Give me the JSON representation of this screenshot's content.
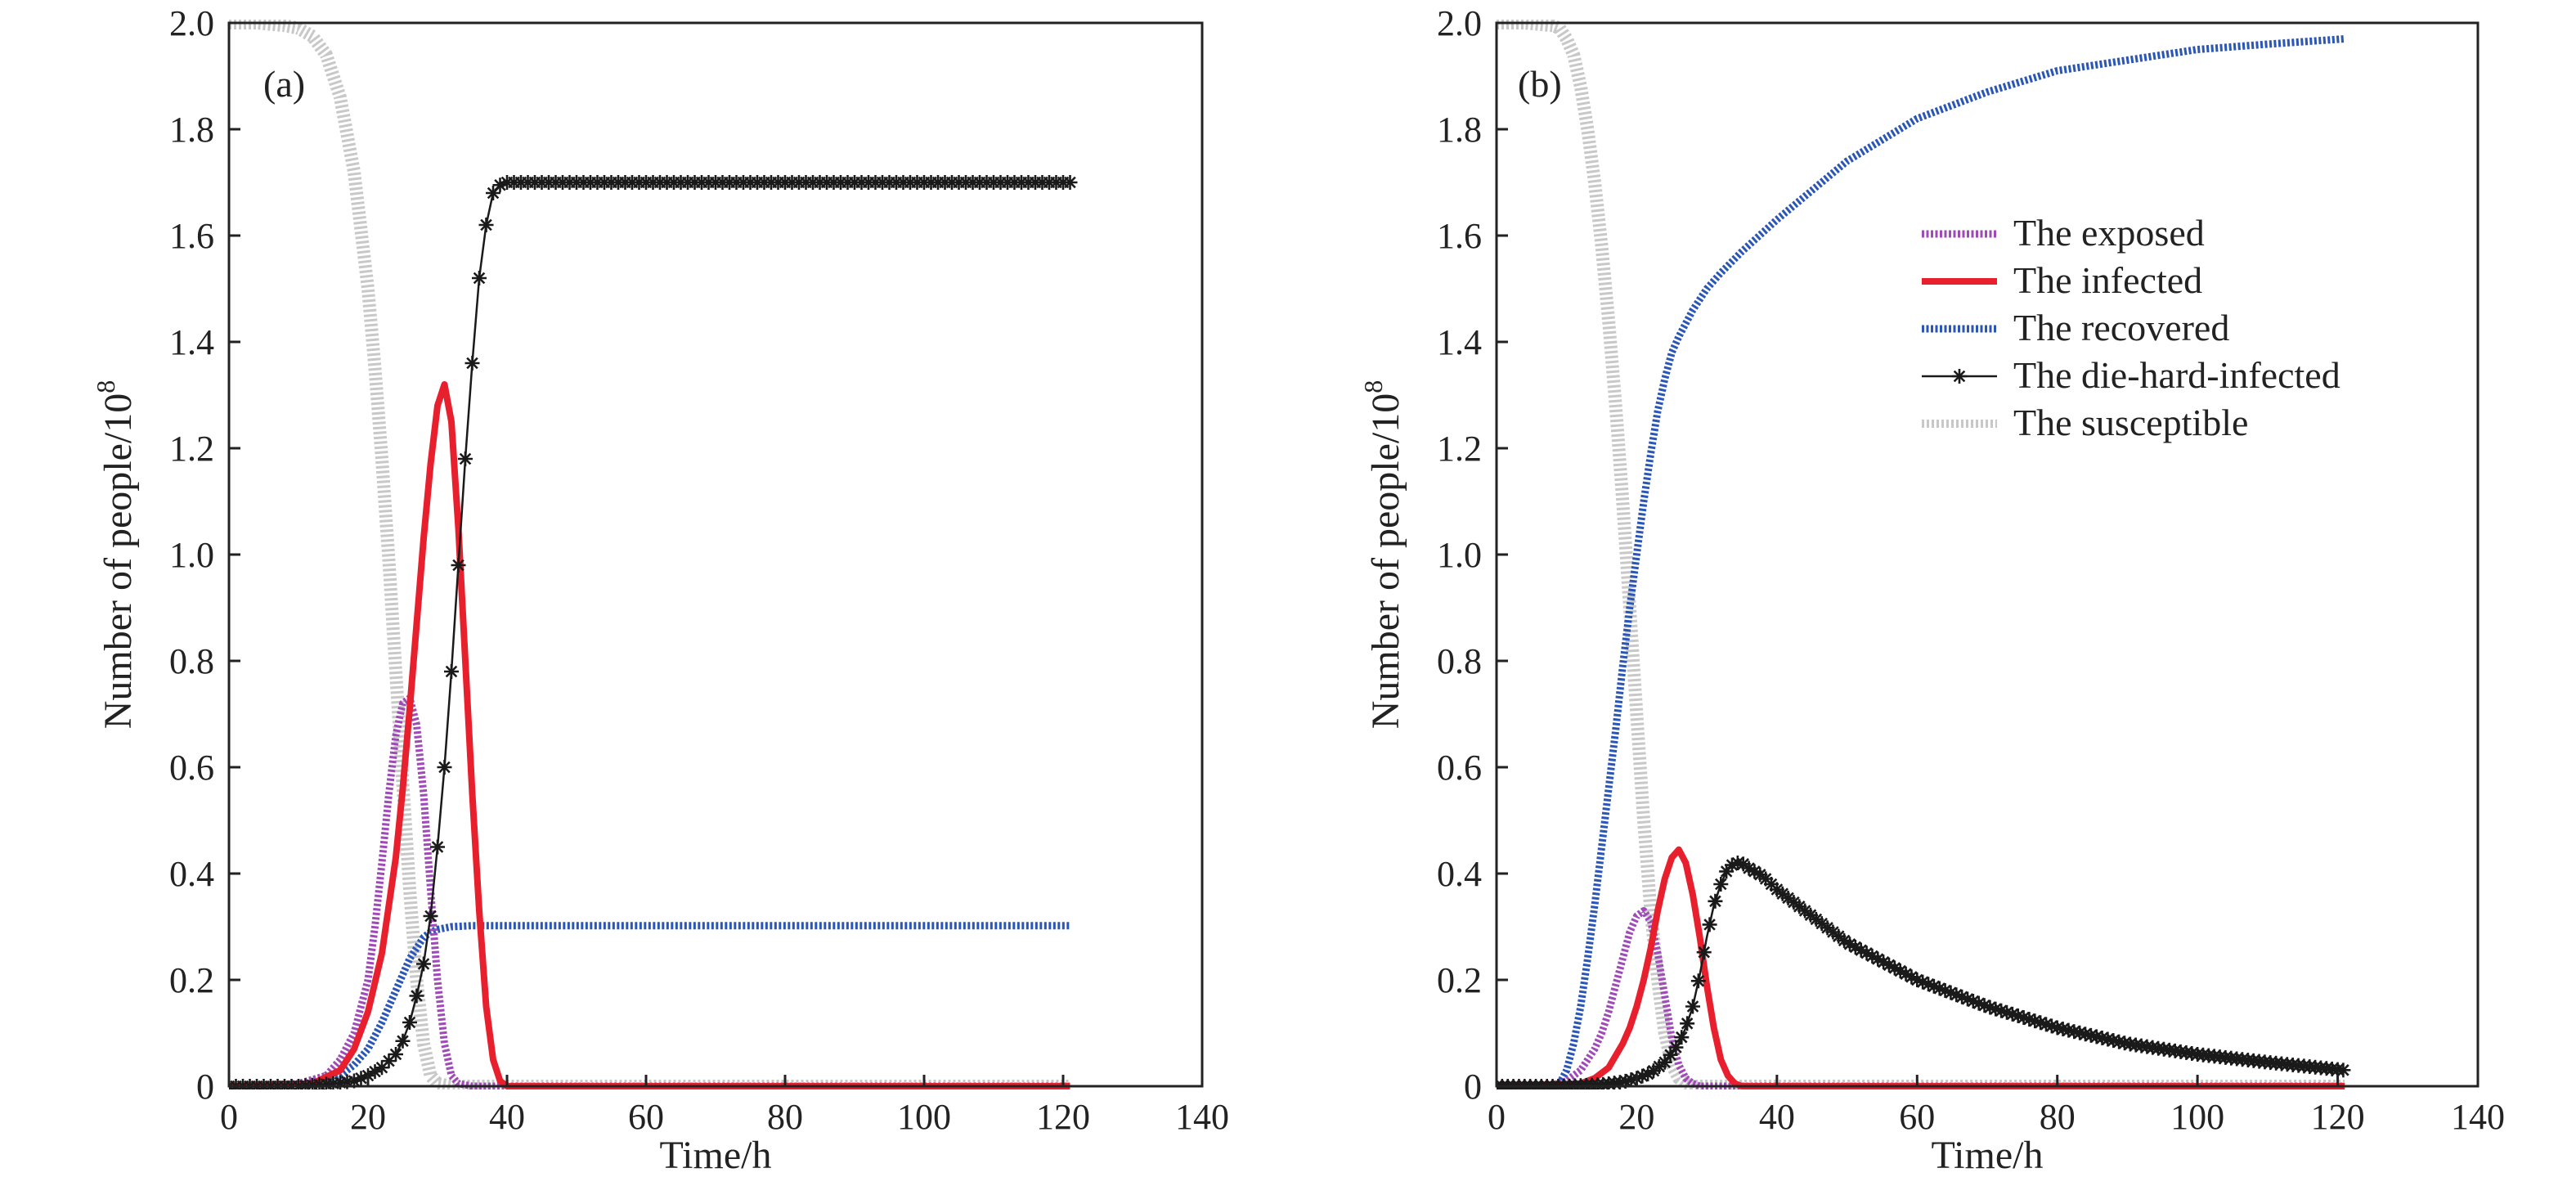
{
  "figure": {
    "legend_labels": [
      "The exposed",
      "The infected",
      "The recovered",
      "The die-hard-infected",
      "The susceptible"
    ]
  },
  "chart_data": [
    {
      "type": "line",
      "panel_label": "(a)",
      "xlabel": "Time/h",
      "ylabel": "Number of people/10",
      "ylabel_superscript": "8",
      "xlim": [
        0,
        140
      ],
      "ylim": [
        0,
        2.0
      ],
      "xticks": [
        "0",
        "20",
        "40",
        "60",
        "80",
        "100",
        "120",
        "140"
      ],
      "yticks": [
        "0",
        "0.2",
        "0.4",
        "0.6",
        "0.8",
        "1.0",
        "1.2",
        "1.4",
        "1.6",
        "1.8",
        "2.0"
      ],
      "legend": false,
      "series": [
        {
          "key": "susceptible",
          "color": "#c8c8c8",
          "style": "thick-light",
          "x": [
            0,
            4,
            8,
            10,
            12,
            14,
            16,
            18,
            20,
            21,
            22,
            23,
            24,
            25,
            26,
            27,
            28,
            29,
            30,
            32,
            35,
            121
          ],
          "y": [
            2.0,
            2.0,
            1.995,
            1.99,
            1.975,
            1.94,
            1.86,
            1.72,
            1.5,
            1.35,
            1.18,
            0.99,
            0.78,
            0.57,
            0.37,
            0.2,
            0.08,
            0.02,
            0.005,
            0,
            0,
            0
          ]
        },
        {
          "key": "exposed",
          "color": "#a04ab8",
          "style": "dotted",
          "x": [
            0,
            10,
            14,
            16,
            18,
            20,
            21,
            22,
            23,
            24,
            25,
            26,
            27,
            28,
            29,
            30,
            31,
            32,
            33,
            35,
            40,
            121
          ],
          "y": [
            0,
            0.005,
            0.02,
            0.05,
            0.1,
            0.2,
            0.3,
            0.42,
            0.55,
            0.66,
            0.72,
            0.73,
            0.68,
            0.55,
            0.37,
            0.2,
            0.08,
            0.02,
            0.005,
            0,
            0,
            0
          ]
        },
        {
          "key": "infected",
          "color": "#e8202e",
          "style": "solid-thick",
          "x": [
            0,
            12,
            16,
            18,
            20,
            22,
            24,
            25,
            26,
            27,
            28,
            29,
            30,
            31,
            32,
            33,
            34,
            35,
            36,
            37,
            38,
            39,
            40,
            121
          ],
          "y": [
            0,
            0.005,
            0.03,
            0.07,
            0.14,
            0.25,
            0.43,
            0.56,
            0.71,
            0.87,
            1.03,
            1.17,
            1.28,
            1.32,
            1.25,
            1.05,
            0.8,
            0.55,
            0.33,
            0.15,
            0.05,
            0.01,
            0,
            0
          ]
        },
        {
          "key": "recovered",
          "color": "#2a56b6",
          "style": "dotted",
          "x": [
            0,
            10,
            14,
            16,
            18,
            20,
            22,
            24,
            25,
            26,
            27,
            28,
            29,
            30,
            32,
            35,
            38,
            40,
            60,
            80,
            100,
            121
          ],
          "y": [
            0,
            0.002,
            0.008,
            0.02,
            0.04,
            0.07,
            0.12,
            0.18,
            0.21,
            0.24,
            0.26,
            0.28,
            0.29,
            0.295,
            0.3,
            0.302,
            0.302,
            0.302,
            0.302,
            0.302,
            0.302,
            0.302
          ]
        },
        {
          "key": "die-hard-infected",
          "color": "#1a1a1a",
          "style": "solid-stars",
          "x": [
            0,
            10,
            15,
            18,
            20,
            22,
            24,
            25,
            26,
            27,
            28,
            29,
            30,
            31,
            32,
            33,
            34,
            35,
            36,
            37,
            38,
            39,
            40,
            50,
            60,
            70,
            80,
            90,
            100,
            110,
            121
          ],
          "y": [
            0,
            0,
            0.005,
            0.01,
            0.02,
            0.035,
            0.06,
            0.085,
            0.12,
            0.17,
            0.23,
            0.32,
            0.45,
            0.6,
            0.78,
            0.98,
            1.18,
            1.36,
            1.52,
            1.62,
            1.68,
            1.695,
            1.7,
            1.7,
            1.7,
            1.7,
            1.7,
            1.7,
            1.7,
            1.7,
            1.7
          ]
        }
      ]
    },
    {
      "type": "line",
      "panel_label": "(b)",
      "xlabel": "Time/h",
      "ylabel": "Number of people/10",
      "ylabel_superscript": "8",
      "xlim": [
        0,
        140
      ],
      "ylim": [
        0,
        2.0
      ],
      "xticks": [
        "0",
        "20",
        "40",
        "60",
        "80",
        "100",
        "120",
        "140"
      ],
      "yticks": [
        "0",
        "0.2",
        "0.4",
        "0.6",
        "0.8",
        "1.0",
        "1.2",
        "1.4",
        "1.6",
        "1.8",
        "2.0"
      ],
      "legend": true,
      "legend_position": "top-right",
      "series": [
        {
          "key": "susceptible",
          "color": "#c8c8c8",
          "style": "thick-light",
          "x": [
            0,
            4,
            8,
            9,
            10,
            11,
            12,
            13,
            14,
            15,
            16,
            17,
            18,
            19,
            20,
            21,
            22,
            23,
            24,
            25,
            26,
            27,
            28,
            30,
            121
          ],
          "y": [
            2.0,
            2.0,
            1.995,
            1.99,
            1.97,
            1.94,
            1.88,
            1.8,
            1.7,
            1.58,
            1.44,
            1.28,
            1.1,
            0.9,
            0.7,
            0.5,
            0.33,
            0.2,
            0.1,
            0.04,
            0.015,
            0.005,
            0,
            0,
            0
          ]
        },
        {
          "key": "exposed",
          "color": "#a04ab8",
          "style": "dotted",
          "x": [
            0,
            8,
            10,
            12,
            14,
            15,
            16,
            17,
            18,
            19,
            20,
            21,
            22,
            23,
            24,
            25,
            26,
            27,
            28,
            29,
            30,
            121
          ],
          "y": [
            0,
            0.002,
            0.01,
            0.03,
            0.07,
            0.1,
            0.14,
            0.19,
            0.24,
            0.29,
            0.32,
            0.33,
            0.31,
            0.25,
            0.17,
            0.09,
            0.04,
            0.015,
            0.005,
            0,
            0,
            0
          ]
        },
        {
          "key": "infected",
          "color": "#e8202e",
          "style": "solid-thick",
          "x": [
            0,
            12,
            14,
            16,
            18,
            19,
            20,
            21,
            22,
            23,
            24,
            25,
            26,
            27,
            28,
            29,
            30,
            31,
            32,
            33,
            34,
            35,
            36,
            121
          ],
          "y": [
            0,
            0.005,
            0.015,
            0.035,
            0.08,
            0.11,
            0.15,
            0.2,
            0.26,
            0.33,
            0.39,
            0.43,
            0.445,
            0.42,
            0.36,
            0.28,
            0.19,
            0.11,
            0.05,
            0.02,
            0.005,
            0,
            0,
            0
          ]
        },
        {
          "key": "recovered",
          "color": "#2a56b6",
          "style": "dotted",
          "x": [
            0,
            8,
            9,
            10,
            11,
            12,
            13,
            14,
            15,
            16,
            17,
            18,
            19,
            20,
            21,
            22,
            23,
            24,
            25,
            26,
            28,
            30,
            32,
            35,
            40,
            50,
            60,
            70,
            80,
            90,
            100,
            110,
            121
          ],
          "y": [
            0,
            0,
            0.005,
            0.03,
            0.08,
            0.15,
            0.24,
            0.34,
            0.45,
            0.56,
            0.67,
            0.79,
            0.9,
            1.0,
            1.1,
            1.19,
            1.27,
            1.33,
            1.38,
            1.41,
            1.46,
            1.5,
            1.53,
            1.57,
            1.63,
            1.74,
            1.82,
            1.87,
            1.91,
            1.93,
            1.95,
            1.96,
            1.97
          ]
        },
        {
          "key": "die-hard-infected",
          "color": "#1a1a1a",
          "style": "solid-stars",
          "x": [
            0,
            10,
            15,
            18,
            20,
            22,
            24,
            26,
            27,
            28,
            29,
            30,
            31,
            32,
            33,
            34,
            35,
            36,
            38,
            40,
            45,
            50,
            55,
            60,
            70,
            80,
            90,
            100,
            110,
            121
          ],
          "y": [
            0,
            0,
            0.003,
            0.008,
            0.015,
            0.025,
            0.045,
            0.08,
            0.11,
            0.15,
            0.21,
            0.28,
            0.34,
            0.38,
            0.41,
            0.42,
            0.42,
            0.41,
            0.395,
            0.37,
            0.32,
            0.27,
            0.235,
            0.2,
            0.15,
            0.11,
            0.08,
            0.06,
            0.045,
            0.03
          ]
        }
      ]
    }
  ]
}
